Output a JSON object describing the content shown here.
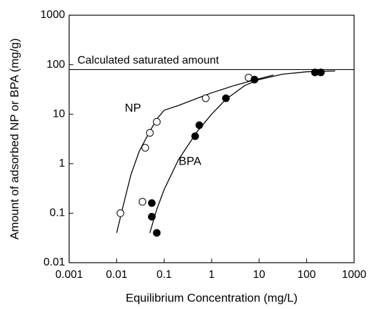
{
  "chart_data": {
    "type": "scatter",
    "x_label": "Equilibrium Concentration (mg/L)",
    "y_label": "Amount of adsorbed NP or BPA (mg/g)",
    "log_x": true,
    "log_y": true,
    "xlim": [
      0.001,
      1000
    ],
    "xticks": [
      0.001,
      0.01,
      0.1,
      1,
      10,
      100,
      1000
    ],
    "ylim": [
      0.01,
      1000
    ],
    "yticks": [
      0.01,
      0.1,
      1,
      10,
      100,
      1000
    ],
    "series": [
      {
        "name": "NP",
        "color": "#ffffff",
        "x": [
          0.012,
          0.035,
          0.04,
          0.05,
          0.07,
          0.75,
          6
        ],
        "values": [
          0.1,
          0.17,
          2.1,
          4.2,
          7,
          21,
          55
        ],
        "fit": {
          "x": [
            0.01,
            0.015,
            0.02,
            0.03,
            0.05,
            0.07,
            0.1,
            0.2,
            0.5,
            1,
            3,
            10,
            20
          ],
          "values": [
            0.04,
            0.2,
            0.6,
            1.8,
            4.5,
            8,
            12,
            15,
            21,
            27,
            38,
            52,
            62
          ]
        }
      },
      {
        "name": "BPA",
        "color": "#000000",
        "x": [
          0.055,
          0.055,
          0.07,
          0.45,
          0.55,
          2,
          8,
          150,
          200
        ],
        "values": [
          0.16,
          0.085,
          0.04,
          3.6,
          6,
          21,
          50,
          70,
          70
        ],
        "fit": {
          "x": [
            0.05,
            0.07,
            0.1,
            0.2,
            0.5,
            1,
            2,
            5,
            10,
            30,
            100,
            400
          ],
          "values": [
            0.04,
            0.12,
            0.3,
            1.2,
            4.5,
            10,
            20,
            38,
            50,
            64,
            72,
            75
          ]
        }
      }
    ],
    "reference_line": {
      "label": "Calculated saturated amount",
      "value": 80
    }
  }
}
